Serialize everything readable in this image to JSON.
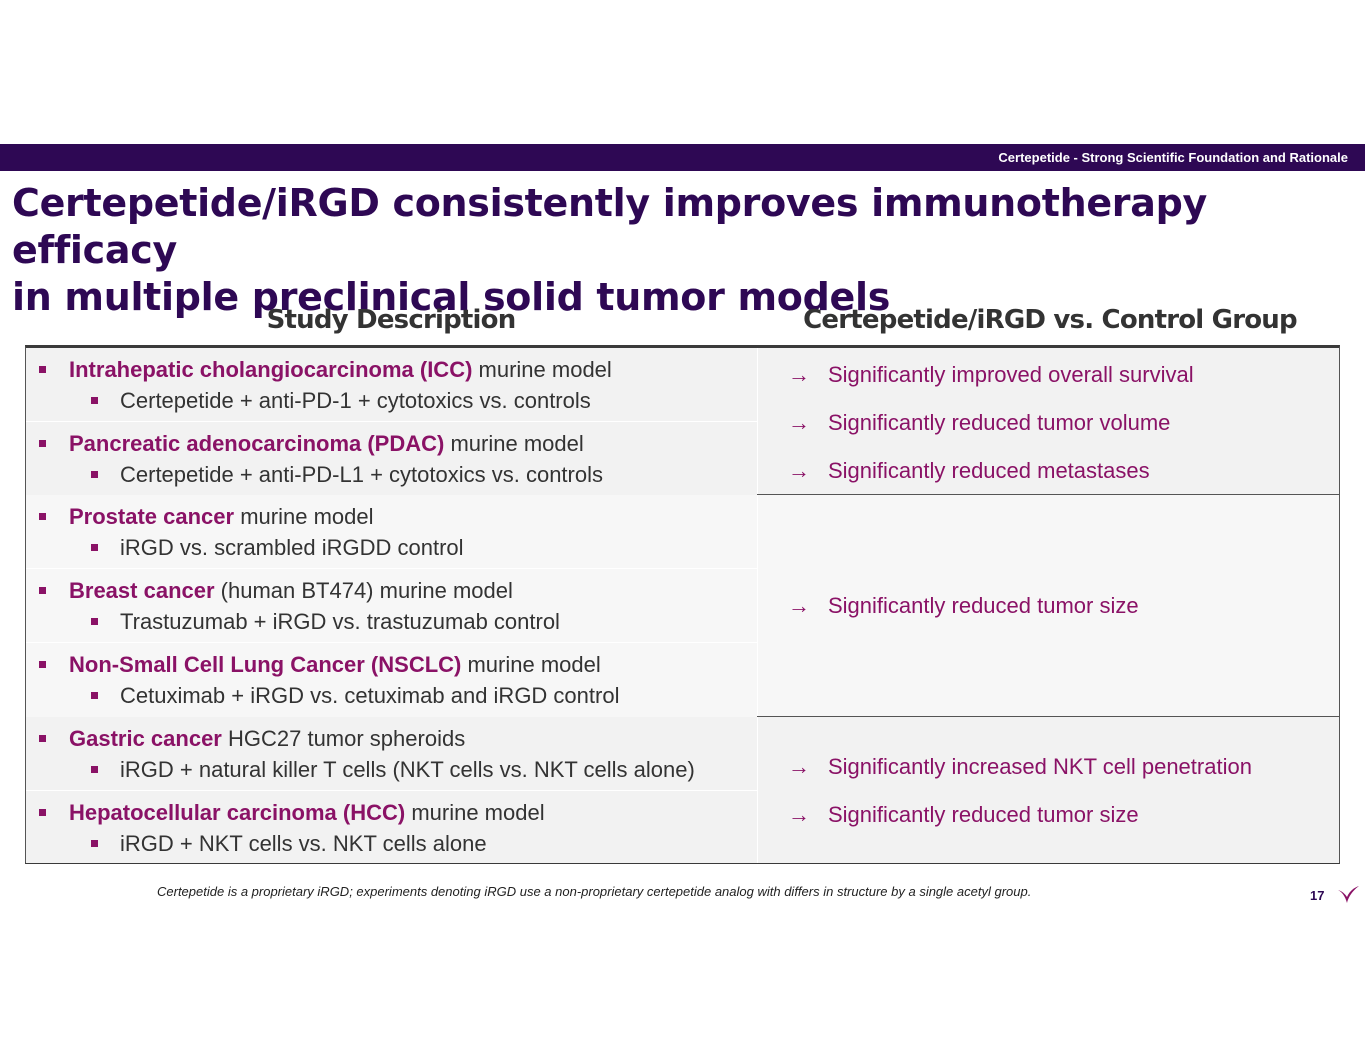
{
  "header": {
    "section_label": "Certepetide - Strong Scientific Foundation and Rationale"
  },
  "title": {
    "line1": "Certepetide/iRGD consistently improves immunotherapy efficacy",
    "line2": "in multiple preclinical solid tumor models"
  },
  "table": {
    "left_header": "Study Description",
    "right_header": "Certepetide/iRGD vs. Control Group",
    "groups": [
      {
        "studies": [
          {
            "name": "Intrahepatic cholangiocarcinoma (ICC)",
            "rest": " murine model",
            "detail": "Certepetide + anti-PD-1 + cytotoxics vs. controls"
          },
          {
            "name": "Pancreatic adenocarcinoma (PDAC)",
            "rest": " murine model",
            "detail": "Certepetide + anti-PD-L1 + cytotoxics vs. controls"
          }
        ],
        "results": [
          "Significantly improved overall survival",
          "Significantly reduced tumor volume",
          "Significantly reduced metastases"
        ]
      },
      {
        "studies": [
          {
            "name": "Prostate cancer",
            "rest": " murine model",
            "detail": "iRGD vs. scrambled iRGDD control"
          },
          {
            "name": "Breast cancer",
            "rest": " (human BT474) murine model",
            "detail": "Trastuzumab + iRGD vs. trastuzumab control"
          },
          {
            "name": "Non-Small Cell Lung Cancer (NSCLC)",
            "rest": " murine model",
            "detail": "Cetuximab + iRGD vs. cetuximab and iRGD control"
          }
        ],
        "results": [
          "Significantly reduced tumor size"
        ]
      },
      {
        "studies": [
          {
            "name": "Gastric cancer",
            "rest": " HGC27 tumor spheroids",
            "detail": "iRGD + natural killer T cells (NKT cells vs. NKT cells alone)"
          },
          {
            "name": "Hepatocellular carcinoma (HCC)",
            "rest": " murine model",
            "detail": "iRGD + NKT cells vs. NKT cells alone"
          }
        ],
        "results": [
          "Significantly increased NKT cell penetration",
          "Significantly reduced tumor size"
        ]
      }
    ],
    "arrow_symbol": "→"
  },
  "footer": {
    "footnote": "Certepetide is a proprietary iRGD; experiments denoting iRGD use a non-proprietary certepetide analog with differs in structure by a single acetyl group.",
    "page_number": "17"
  },
  "colors": {
    "brand_purple": "#2e0854",
    "accent_magenta": "#8a1266",
    "text_gray": "#333333"
  }
}
